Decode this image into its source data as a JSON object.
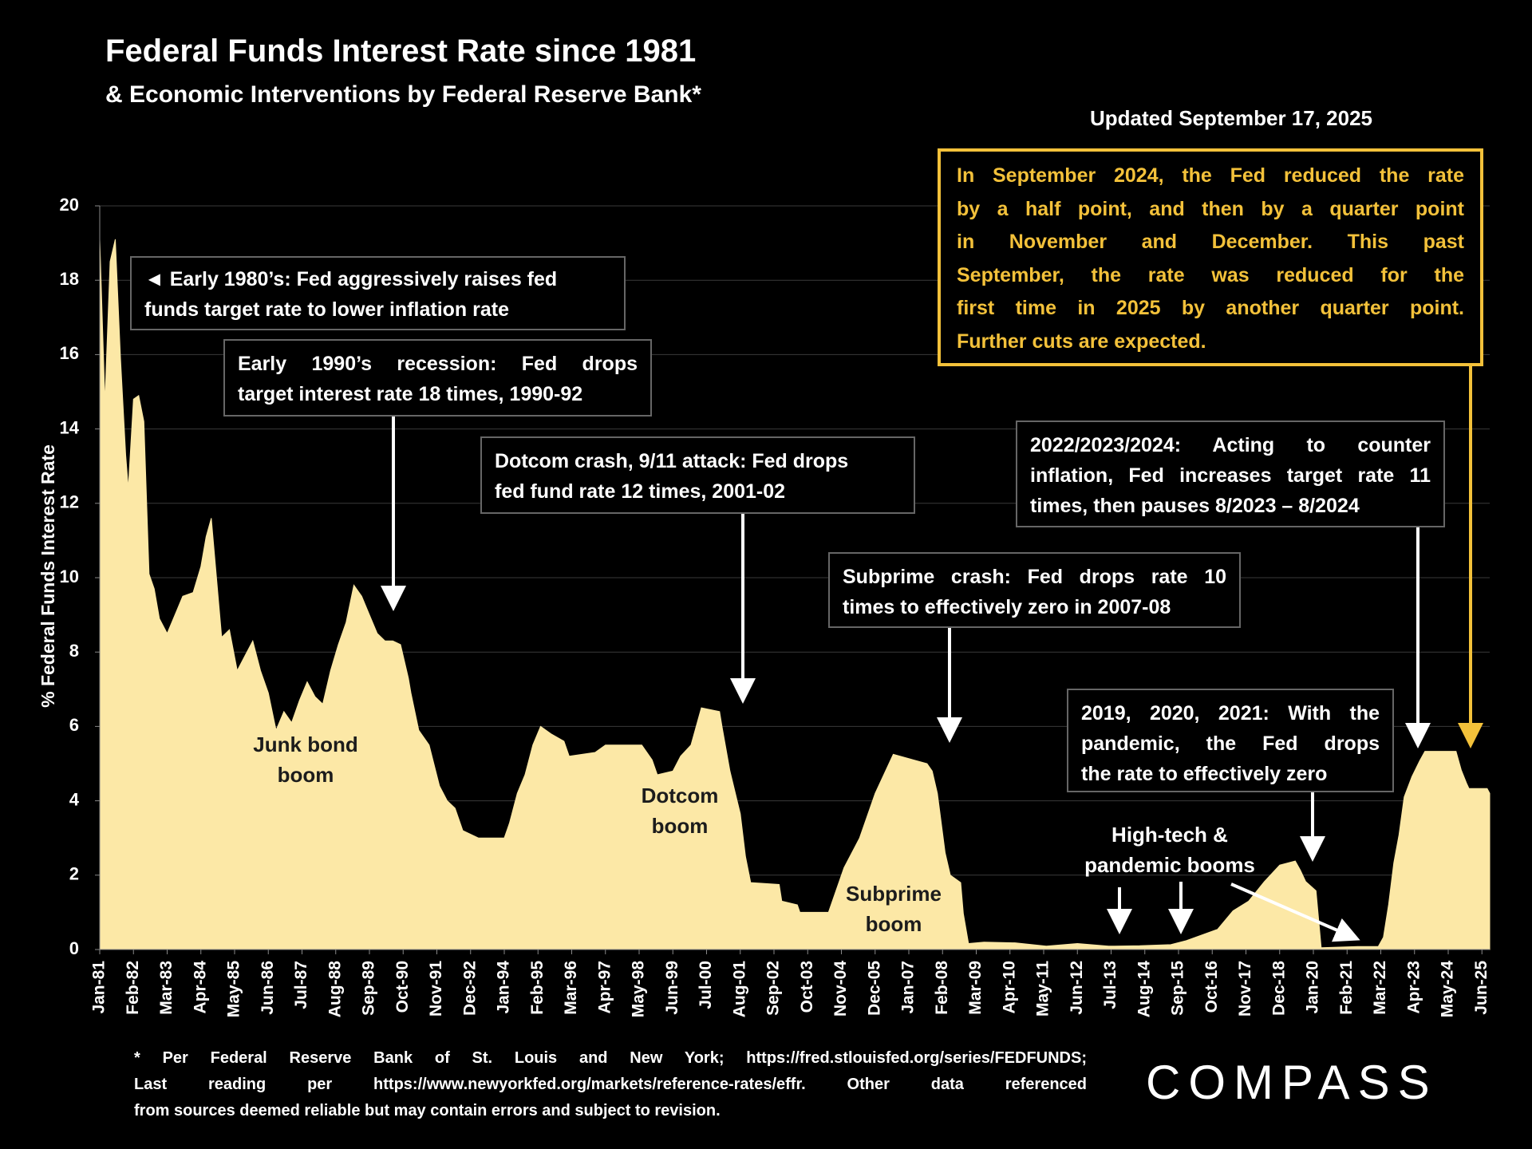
{
  "chart_data": {
    "type": "area",
    "title": "Federal Funds Interest Rate since 1981",
    "subtitle": "& Economic Interventions by Federal Reserve Bank*",
    "updated": "Updated September 17, 2025",
    "y_label": "% Federal Funds Interest Rate",
    "color": "#fce8a6",
    "grid": true,
    "ylim": [
      0,
      20
    ],
    "yticks": [
      0,
      2,
      4,
      6,
      8,
      10,
      12,
      14,
      16,
      18,
      20
    ],
    "xlim": [
      "1981-01",
      "2025-09"
    ],
    "xticks": [
      {
        "value": "1981-01",
        "label": "Jan-81"
      },
      {
        "value": "1982-02",
        "label": "Feb-82"
      },
      {
        "value": "1983-03",
        "label": "Mar-83"
      },
      {
        "value": "1984-04",
        "label": "Apr-84"
      },
      {
        "value": "1985-05",
        "label": "May-85"
      },
      {
        "value": "1986-06",
        "label": "Jun-86"
      },
      {
        "value": "1987-07",
        "label": "Jul-87"
      },
      {
        "value": "1988-08",
        "label": "Aug-88"
      },
      {
        "value": "1989-09",
        "label": "Sep-89"
      },
      {
        "value": "1990-10",
        "label": "Oct-90"
      },
      {
        "value": "1991-11",
        "label": "Nov-91"
      },
      {
        "value": "1992-12",
        "label": "Dec-92"
      },
      {
        "value": "1994-01",
        "label": "Jan-94"
      },
      {
        "value": "1995-02",
        "label": "Feb-95"
      },
      {
        "value": "1996-03",
        "label": "Mar-96"
      },
      {
        "value": "1997-04",
        "label": "Apr-97"
      },
      {
        "value": "1998-05",
        "label": "May-98"
      },
      {
        "value": "1999-06",
        "label": "Jun-99"
      },
      {
        "value": "2000-07",
        "label": "Jul-00"
      },
      {
        "value": "2001-08",
        "label": "Aug-01"
      },
      {
        "value": "2002-09",
        "label": "Sep-02"
      },
      {
        "value": "2003-10",
        "label": "Oct-03"
      },
      {
        "value": "2004-11",
        "label": "Nov-04"
      },
      {
        "value": "2005-12",
        "label": "Dec-05"
      },
      {
        "value": "2007-01",
        "label": "Jan-07"
      },
      {
        "value": "2008-02",
        "label": "Feb-08"
      },
      {
        "value": "2009-03",
        "label": "Mar-09"
      },
      {
        "value": "2010-04",
        "label": "Apr-10"
      },
      {
        "value": "2011-05",
        "label": "May-11"
      },
      {
        "value": "2012-06",
        "label": "Jun-12"
      },
      {
        "value": "2013-07",
        "label": "Jul-13"
      },
      {
        "value": "2014-08",
        "label": "Aug-14"
      },
      {
        "value": "2015-09",
        "label": "Sep-15"
      },
      {
        "value": "2016-10",
        "label": "Oct-16"
      },
      {
        "value": "2017-11",
        "label": "Nov-17"
      },
      {
        "value": "2018-12",
        "label": "Dec-18"
      },
      {
        "value": "2020-01",
        "label": "Jan-20"
      },
      {
        "value": "2021-02",
        "label": "Feb-21"
      },
      {
        "value": "2022-03",
        "label": "Mar-22"
      },
      {
        "value": "2023-04",
        "label": "Apr-23"
      },
      {
        "value": "2024-05",
        "label": "May-24"
      },
      {
        "value": "2025-06",
        "label": "Jun-25"
      }
    ],
    "x": [
      "1981-01",
      "1981-03",
      "1981-05",
      "1981-07",
      "1981-09",
      "1981-11",
      "1981-12",
      "1982-02",
      "1982-04",
      "1982-06",
      "1982-08",
      "1982-10",
      "1982-12",
      "1983-03",
      "1983-06",
      "1983-09",
      "1984-01",
      "1984-04",
      "1984-06",
      "1984-08",
      "1984-10",
      "1984-12",
      "1985-03",
      "1985-06",
      "1985-09",
      "1985-12",
      "1986-03",
      "1986-06",
      "1986-09",
      "1986-12",
      "1987-03",
      "1987-06",
      "1987-09",
      "1987-12",
      "1988-03",
      "1988-06",
      "1988-09",
      "1988-12",
      "1989-03",
      "1989-06",
      "1989-09",
      "1989-12",
      "1990-03",
      "1990-06",
      "1990-09",
      "1990-12",
      "1991-01",
      "1991-04",
      "1991-08",
      "1991-12",
      "1992-03",
      "1992-06",
      "1992-09",
      "1993-03",
      "1993-09",
      "1994-01",
      "1994-03",
      "1994-06",
      "1994-09",
      "1994-12",
      "1995-03",
      "1995-07",
      "1995-12",
      "1996-02",
      "1996-12",
      "1997-04",
      "1998-06",
      "1998-10",
      "1998-12",
      "1999-06",
      "1999-09",
      "2000-01",
      "2000-05",
      "2000-12",
      "2001-01",
      "2001-04",
      "2001-08",
      "2001-10",
      "2001-12",
      "2002-11",
      "2002-12",
      "2003-06",
      "2003-07",
      "2004-06",
      "2004-12",
      "2005-06",
      "2005-12",
      "2006-07",
      "2007-08",
      "2007-10",
      "2007-12",
      "2008-03",
      "2008-05",
      "2008-09",
      "2008-10",
      "2008-12",
      "2009-06",
      "2010-06",
      "2011-06",
      "2012-06",
      "2013-06",
      "2014-06",
      "2015-06",
      "2015-12",
      "2016-12",
      "2017-06",
      "2017-12",
      "2018-06",
      "2018-12",
      "2019-06",
      "2019-08",
      "2019-10",
      "2020-02",
      "2020-04",
      "2021-06",
      "2022-02",
      "2022-04",
      "2022-06",
      "2022-08",
      "2022-10",
      "2022-12",
      "2023-03",
      "2023-06",
      "2023-08",
      "2024-08",
      "2024-10",
      "2024-12",
      "2025-01",
      "2025-08",
      "2025-09"
    ],
    "values": [
      19.1,
      14.7,
      18.5,
      19.1,
      15.9,
      13.3,
      12.4,
      14.8,
      14.9,
      14.2,
      10.1,
      9.7,
      8.9,
      8.5,
      9.0,
      9.5,
      9.6,
      10.3,
      11.1,
      11.6,
      10.0,
      8.4,
      8.6,
      7.5,
      7.9,
      8.3,
      7.5,
      6.9,
      5.9,
      6.4,
      6.1,
      6.7,
      7.2,
      6.8,
      6.6,
      7.5,
      8.2,
      8.8,
      9.8,
      9.5,
      9.0,
      8.5,
      8.3,
      8.3,
      8.2,
      7.3,
      6.9,
      5.9,
      5.5,
      4.4,
      4.0,
      3.8,
      3.2,
      3.0,
      3.0,
      3.0,
      3.4,
      4.2,
      4.7,
      5.5,
      6.0,
      5.8,
      5.6,
      5.2,
      5.3,
      5.5,
      5.5,
      5.1,
      4.7,
      4.8,
      5.2,
      5.5,
      6.5,
      6.4,
      5.98,
      4.8,
      3.65,
      2.5,
      1.8,
      1.75,
      1.3,
      1.2,
      1.0,
      1.0,
      2.2,
      3.0,
      4.2,
      5.25,
      5.0,
      4.8,
      4.2,
      2.6,
      2.0,
      1.8,
      0.97,
      0.16,
      0.2,
      0.18,
      0.09,
      0.16,
      0.09,
      0.1,
      0.13,
      0.24,
      0.54,
      1.04,
      1.3,
      1.82,
      2.27,
      2.38,
      2.13,
      1.83,
      1.58,
      0.05,
      0.08,
      0.08,
      0.33,
      1.21,
      2.33,
      3.08,
      4.1,
      4.65,
      5.08,
      5.33,
      5.33,
      4.83,
      4.48,
      4.33,
      4.33,
      4.2
    ],
    "annotations": [
      {
        "lines": [
          "◄ Early 1980’s: Fed aggressively raises fed",
          "funds target rate to lower inflation rate"
        ]
      },
      {
        "lines": [
          "Early 1990’s recession: Fed drops",
          "target interest rate 18 times, 1990-92"
        ]
      },
      {
        "lines": [
          "Dotcom crash, 9/11 attack: Fed drops",
          "fed fund rate 12 times, 2001-02"
        ]
      },
      {
        "lines": [
          "Subprime crash: Fed drops rate 10",
          "times to effectively zero in 2007-08"
        ]
      },
      {
        "lines": [
          "2022/2023/2024: Acting to counter",
          "inflation, Fed increases target rate 11",
          "times, then pauses 8/2023 – 8/2024"
        ]
      },
      {
        "lines": [
          "2019, 2020, 2021: With the",
          "pandemic, the Fed drops",
          "the  rate to effectively zero"
        ]
      },
      {
        "lines": [
          "In September 2024, the Fed reduced the rate",
          "by a half point, and then by a quarter point",
          "in November and December. This past",
          "September, the rate was reduced for the",
          "first time in 2025  by another quarter point.",
          "Further cuts are expected."
        ]
      },
      {
        "lines": [
          "Junk bond",
          "boom"
        ]
      },
      {
        "lines": [
          "Dotcom",
          "boom"
        ]
      },
      {
        "lines": [
          "Subprime",
          "boom"
        ]
      },
      {
        "lines": [
          "High-tech &",
          "pandemic booms"
        ]
      }
    ],
    "footnote": [
      "* Per Federal Reserve Bank of St. Louis and New York; https://fred.stlouisfed.org/series/FEDFUNDS;",
      "Last reading per https://www.newyorkfed.org/markets/reference-rates/effr. Other data referenced",
      "from sources deemed reliable but may contain errors and subject to revision."
    ],
    "logo": "COMPASS"
  }
}
